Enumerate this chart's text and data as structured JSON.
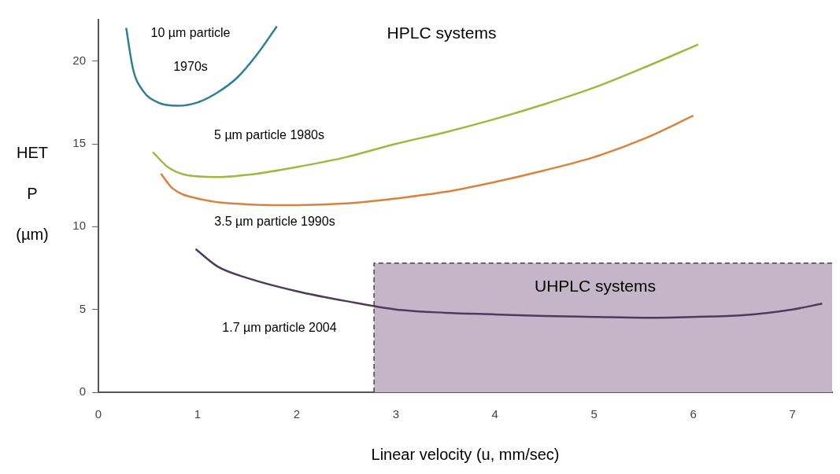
{
  "chart_data": {
    "type": "line",
    "xlabel": "Linear velocity (u, mm/sec)",
    "ylabel": "HETP (µm)",
    "xlim": [
      0,
      7.4
    ],
    "ylim": [
      0,
      22.5
    ],
    "xticks": [
      0,
      1,
      2,
      3,
      4,
      5,
      6,
      7
    ],
    "yticks": [
      0,
      5,
      10,
      15,
      20
    ],
    "series": [
      {
        "type": "area",
        "color": "#c5b5c9",
        "x": [
          2.78,
          2.78,
          7.4
        ],
        "values": [
          0,
          7.8,
          7.8
        ],
        "line_style": "dashed"
      },
      {
        "name": "10 µm particle 1970s",
        "color": "#2e7f94",
        "x": [
          0.28,
          0.35,
          0.45,
          0.6,
          0.8,
          1.0,
          1.2,
          1.4,
          1.6,
          1.8
        ],
        "values": [
          22.0,
          19.5,
          18.2,
          17.5,
          17.3,
          17.5,
          18.1,
          19.0,
          20.4,
          22.1
        ]
      },
      {
        "name": "5 µm particle 1980s",
        "color": "#9bbb3c",
        "x": [
          0.55,
          0.7,
          0.9,
          1.2,
          1.6,
          2,
          2.5,
          3,
          3.5,
          4,
          4.5,
          5,
          5.5,
          6.05
        ],
        "values": [
          14.5,
          13.6,
          13.1,
          13.0,
          13.2,
          13.6,
          14.2,
          15.0,
          15.7,
          16.5,
          17.4,
          18.4,
          19.6,
          21.0
        ]
      },
      {
        "name": "3.5 µm particle 1990s",
        "color": "#d9823c",
        "x": [
          0.63,
          0.75,
          1,
          1.5,
          2,
          2.5,
          3,
          3.5,
          4,
          4.5,
          5,
          5.5,
          6
        ],
        "values": [
          13.2,
          12.3,
          11.7,
          11.35,
          11.3,
          11.4,
          11.7,
          12.1,
          12.7,
          13.4,
          14.2,
          15.3,
          16.7
        ]
      },
      {
        "name": "1.7 µm particle 2004",
        "color": "#4e3a5e",
        "x": [
          0.98,
          1.2,
          1.5,
          2,
          2.5,
          3,
          3.5,
          4,
          4.5,
          5,
          5.5,
          6,
          6.5,
          7,
          7.3
        ],
        "values": [
          8.65,
          7.6,
          6.9,
          6.1,
          5.5,
          5.0,
          4.8,
          4.7,
          4.6,
          4.55,
          4.5,
          4.55,
          4.65,
          5.0,
          5.35
        ]
      }
    ],
    "annotations": [
      "HPLC systems",
      "UHPLC systems"
    ]
  }
}
